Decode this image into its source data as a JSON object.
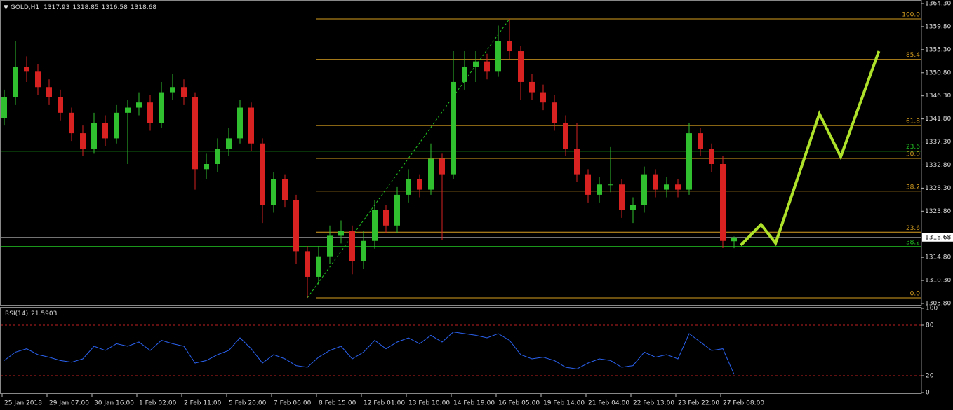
{
  "chart_data": {
    "type": "candlestick",
    "symbol": "GOLD,H1",
    "categories": [
      "25 Jan 2018",
      null,
      null,
      null,
      "29 Jan 07:00",
      null,
      null,
      null,
      "30 Jan 16:00",
      null,
      null,
      null,
      "1 Feb 02:00",
      null,
      null,
      null,
      "2 Feb 11:00",
      null,
      null,
      null,
      "5 Feb 20:00",
      null,
      null,
      null,
      "7 Feb 06:00",
      null,
      null,
      null,
      "8 Feb 15:00",
      null,
      null,
      null,
      "12 Feb 01:00",
      null,
      null,
      null,
      "13 Feb 10:00",
      null,
      null,
      null,
      "14 Feb 19:00",
      null,
      null,
      null,
      "16 Feb 05:00",
      null,
      null,
      null,
      "19 Feb 14:00",
      null,
      null,
      null,
      "21 Feb 04:00",
      null,
      null,
      null,
      "22 Feb 13:00",
      null,
      null,
      null,
      "23 Feb 22:00",
      null,
      null,
      null,
      "27 Feb 08:00",
      null
    ],
    "open": [
      1342,
      1346,
      1352,
      1351,
      1348,
      1346,
      1343,
      1339,
      1336,
      1341,
      1338,
      1343,
      1344,
      1345,
      1341,
      1347,
      1348,
      1346,
      1332,
      1333,
      1336,
      1338,
      1344,
      1337,
      1325,
      1330,
      1326,
      1316,
      1311,
      1315,
      1319,
      1320,
      1314,
      1318,
      1324,
      1321,
      1327,
      1330,
      1328,
      1334,
      1331,
      1349,
      1352,
      1353,
      1351,
      1357,
      1355,
      1349,
      1347,
      1345,
      1341,
      1336,
      1331,
      1327,
      1329,
      1329,
      1324,
      1325,
      1331,
      1328,
      1329,
      1328,
      1339,
      1336,
      1333,
      1317.93
    ],
    "high": [
      1347.5,
      1357,
      1354,
      1352.5,
      1349.5,
      1347.5,
      1344,
      1340.5,
      1343,
      1342.5,
      1344.5,
      1345.5,
      1347,
      1346.5,
      1349,
      1350.5,
      1349.5,
      1347,
      1335,
      1338,
      1340,
      1345.5,
      1345,
      1338,
      1331.5,
      1331,
      1327,
      1317,
      1317,
      1321,
      1322,
      1321,
      1320,
      1326,
      1325,
      1328.5,
      1332,
      1331,
      1337,
      1335,
      1355,
      1355,
      1355,
      1354.5,
      1360,
      1361.3,
      1356,
      1350.5,
      1348.5,
      1346.5,
      1342.5,
      1341,
      1332,
      1330.5,
      1336.3,
      1330,
      1326.5,
      1332.5,
      1332,
      1330.5,
      1330,
      1341,
      1340,
      1337,
      1334.5,
      1318.85
    ],
    "low": [
      1340.5,
      1344.5,
      1349,
      1346.5,
      1344.5,
      1341.5,
      1337.5,
      1334.5,
      1335,
      1336.5,
      1337,
      1333,
      1342.5,
      1339.5,
      1340,
      1345.5,
      1344.5,
      1328,
      1330,
      1331.5,
      1334.5,
      1337,
      1335.5,
      1321.5,
      1323.5,
      1324.5,
      1313.5,
      1306.9,
      1309.5,
      1313.5,
      1317.5,
      1311.5,
      1312.5,
      1316.5,
      1319.5,
      1319.5,
      1325.5,
      1326.5,
      1327,
      1318.1,
      1330,
      1347.5,
      1349,
      1349.5,
      1350,
      1353.5,
      1345.5,
      1345.5,
      1343.5,
      1339.5,
      1334.5,
      1329.5,
      1325.5,
      1325.5,
      1327.5,
      1322.5,
      1321.5,
      1323.5,
      1326.5,
      1326.5,
      1326.5,
      1327,
      1334.5,
      1331.5,
      1316.6,
      1316.58
    ],
    "close": [
      1346,
      1352,
      1351,
      1348,
      1346,
      1343,
      1339,
      1336,
      1341,
      1338,
      1343,
      1344,
      1345,
      1341,
      1347,
      1348,
      1346,
      1332,
      1333,
      1336,
      1338,
      1344,
      1337,
      1325,
      1330,
      1326,
      1316,
      1311,
      1315,
      1319,
      1320,
      1314,
      1318,
      1324,
      1321,
      1327,
      1330,
      1328,
      1334,
      1331,
      1349,
      1352,
      1353,
      1351,
      1357,
      1355,
      1349,
      1347,
      1345,
      1341,
      1336,
      1331,
      1327,
      1329,
      1329,
      1324,
      1325,
      1331,
      1328,
      1329,
      1328,
      1339,
      1336,
      1333,
      1318,
      1318.68
    ],
    "up_color": "#2fbf2f",
    "down_color": "#d82222",
    "ylim": [
      1305.8,
      1364.3
    ],
    "yticks": [
      {
        "value": 1364.3,
        "label": "1364.30"
      },
      {
        "value": 1359.8,
        "label": "1359.80"
      },
      {
        "value": 1355.3,
        "label": "1355.30"
      },
      {
        "value": 1350.8,
        "label": "1350.80"
      },
      {
        "value": 1346.3,
        "label": "1346.30"
      },
      {
        "value": 1341.8,
        "label": "1341.80"
      },
      {
        "value": 1337.3,
        "label": "1337.30"
      },
      {
        "value": 1332.8,
        "label": "1332.80"
      },
      {
        "value": 1328.3,
        "label": "1328.30"
      },
      {
        "value": 1323.8,
        "label": "1323.80"
      },
      {
        "value": 1314.8,
        "label": "1314.80"
      },
      {
        "value": 1310.3,
        "label": "1310.30"
      },
      {
        "value": 1305.8,
        "label": "1305.80"
      }
    ],
    "fib_color": "#d8a020",
    "fib_levels": [
      {
        "label": "100.0",
        "price": 1361.3
      },
      {
        "label": "85.4",
        "price": 1353.4
      },
      {
        "label": "61.8",
        "price": 1340.5
      },
      {
        "label": "50.0",
        "price": 1334.1
      },
      {
        "label": "38.2",
        "price": 1327.7
      },
      {
        "label": "23.6",
        "price": 1319.7
      },
      {
        "label": "0.0",
        "price": 1306.9
      }
    ],
    "level_color": "#22c822",
    "green_levels": [
      {
        "label": "23.6",
        "price": 1335.5
      },
      {
        "label": "38.2",
        "price": 1316.9
      }
    ],
    "forecast": {
      "color": "#aee22a",
      "x": [
        65.6,
        67.4,
        68.7,
        72.6,
        74.5,
        77.9
      ],
      "values": [
        1317.15,
        1321.2,
        1317.55,
        1342.8,
        1334.4,
        1355.0
      ]
    },
    "rsi": {
      "title": "RSI(14)",
      "color": "#2a62f0",
      "level_color": "#c02020",
      "values": [
        38,
        48,
        52,
        45,
        42,
        38,
        36,
        40,
        55,
        50,
        58,
        55,
        60,
        50,
        62,
        58,
        55,
        35,
        38,
        45,
        50,
        65,
        52,
        35,
        45,
        40,
        32,
        30,
        42,
        50,
        55,
        40,
        48,
        62,
        52,
        60,
        65,
        58,
        68,
        60,
        72,
        70,
        68,
        65,
        70,
        62,
        45,
        40,
        42,
        38,
        30,
        28,
        35,
        40,
        38,
        30,
        32,
        48,
        42,
        45,
        40,
        70,
        60,
        50,
        52,
        21.5903
      ],
      "ylim": [
        0,
        100
      ],
      "yticks": [
        0,
        20,
        80,
        100
      ],
      "levels": [
        20,
        80
      ]
    }
  }
}
